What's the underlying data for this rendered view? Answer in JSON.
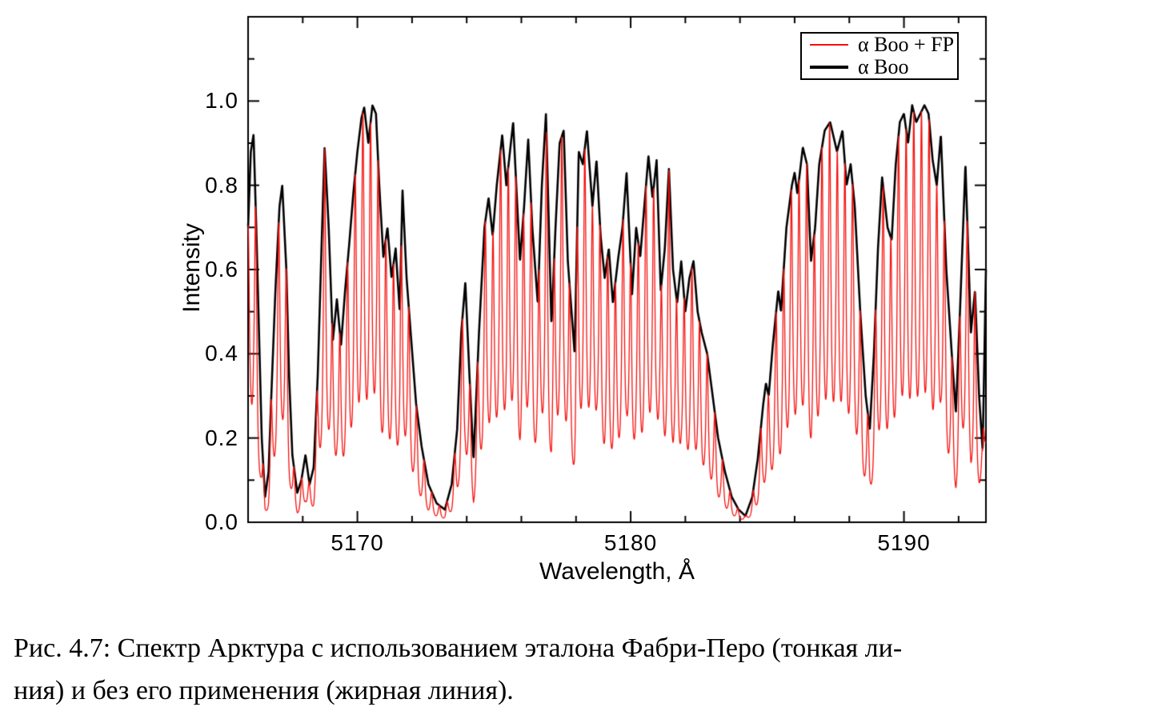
{
  "axes": {
    "x": {
      "label": "Wavelength, Å",
      "min": 5166.0,
      "max": 5193.0,
      "major_ticks": [
        5170,
        5180,
        5190
      ],
      "major_tick_labels": [
        "5170",
        "5180",
        "5190"
      ],
      "minor_step": 2
    },
    "y": {
      "label": "Intensity",
      "min": 0.0,
      "max": 1.2,
      "major_ticks": [
        0.0,
        0.2,
        0.4,
        0.6,
        0.8,
        1.0
      ],
      "major_tick_labels": [
        "0.0",
        "0.2",
        "0.4",
        "0.6",
        "0.8",
        "1.0"
      ],
      "minor_step": 0.1
    }
  },
  "legend": {
    "position": "top-right",
    "entries": [
      {
        "label": "α Boo + FP",
        "color": "#f5100c",
        "line_width": 2
      },
      {
        "label": "α Boo",
        "color": "#000000",
        "line_width": 4
      }
    ]
  },
  "chart_data": {
    "type": "line",
    "title": "",
    "xlabel": "Wavelength, Å",
    "ylabel": "Intensity",
    "xlim": [
      5166.0,
      5193.0
    ],
    "ylim": [
      0,
      1.2
    ],
    "grid": false,
    "legend_position": "top-right",
    "series": [
      {
        "name": "α Boo",
        "color": "#000000",
        "style": "thick",
        "points": {
          "x": [
            5166.0,
            5166.1,
            5166.2,
            5166.3,
            5166.4,
            5166.5,
            5166.62,
            5166.75,
            5166.85,
            5167.0,
            5167.15,
            5167.25,
            5167.4,
            5167.5,
            5167.62,
            5167.8,
            5167.95,
            5168.1,
            5168.25,
            5168.4,
            5168.55,
            5168.7,
            5168.8,
            5168.95,
            5169.1,
            5169.25,
            5169.4,
            5169.55,
            5169.7,
            5169.85,
            5170.0,
            5170.15,
            5170.25,
            5170.4,
            5170.55,
            5170.68,
            5170.8,
            5170.95,
            5171.1,
            5171.25,
            5171.4,
            5171.55,
            5171.65,
            5171.8,
            5171.95,
            5172.15,
            5172.35,
            5172.6,
            5172.9,
            5173.2,
            5173.45,
            5173.65,
            5173.8,
            5173.95,
            5174.1,
            5174.25,
            5174.45,
            5174.65,
            5174.8,
            5174.95,
            5175.1,
            5175.3,
            5175.45,
            5175.7,
            5175.95,
            5176.1,
            5176.25,
            5176.4,
            5176.6,
            5176.75,
            5176.9,
            5177.1,
            5177.25,
            5177.4,
            5177.55,
            5177.7,
            5177.95,
            5178.1,
            5178.25,
            5178.4,
            5178.6,
            5178.75,
            5178.9,
            5179.05,
            5179.2,
            5179.35,
            5179.55,
            5179.7,
            5179.85,
            5180.05,
            5180.2,
            5180.35,
            5180.5,
            5180.65,
            5180.8,
            5180.95,
            5181.1,
            5181.25,
            5181.4,
            5181.55,
            5181.7,
            5181.85,
            5182.0,
            5182.15,
            5182.3,
            5182.45,
            5182.6,
            5182.8,
            5183.0,
            5183.2,
            5183.45,
            5183.7,
            5183.95,
            5184.2,
            5184.45,
            5184.65,
            5184.85,
            5184.95,
            5185.05,
            5185.2,
            5185.4,
            5185.5,
            5185.7,
            5185.9,
            5186.0,
            5186.1,
            5186.3,
            5186.45,
            5186.6,
            5186.75,
            5186.9,
            5187.1,
            5187.3,
            5187.55,
            5187.75,
            5187.9,
            5188.05,
            5188.2,
            5188.4,
            5188.6,
            5188.75,
            5188.9,
            5189.05,
            5189.2,
            5189.4,
            5189.55,
            5189.7,
            5189.85,
            5190.0,
            5190.15,
            5190.3,
            5190.45,
            5190.6,
            5190.75,
            5190.9,
            5191.05,
            5191.2,
            5191.35,
            5191.55,
            5191.75,
            5191.9,
            5192.05,
            5192.25,
            5192.45,
            5192.6,
            5192.75,
            5192.88,
            5193.0
          ],
          "y": [
            0.7,
            0.88,
            0.92,
            0.7,
            0.45,
            0.2,
            0.06,
            0.12,
            0.3,
            0.55,
            0.75,
            0.8,
            0.6,
            0.35,
            0.16,
            0.07,
            0.1,
            0.16,
            0.09,
            0.13,
            0.35,
            0.68,
            0.89,
            0.7,
            0.43,
            0.53,
            0.42,
            0.55,
            0.66,
            0.78,
            0.88,
            0.96,
            0.985,
            0.9,
            0.99,
            0.97,
            0.8,
            0.63,
            0.7,
            0.58,
            0.65,
            0.5,
            0.79,
            0.58,
            0.45,
            0.28,
            0.18,
            0.09,
            0.045,
            0.03,
            0.09,
            0.22,
            0.45,
            0.57,
            0.35,
            0.15,
            0.45,
            0.7,
            0.77,
            0.68,
            0.8,
            0.92,
            0.8,
            0.95,
            0.62,
            0.75,
            0.91,
            0.7,
            0.52,
            0.8,
            0.97,
            0.47,
            0.7,
            0.9,
            0.93,
            0.62,
            0.4,
            0.88,
            0.85,
            0.93,
            0.75,
            0.86,
            0.68,
            0.58,
            0.65,
            0.52,
            0.63,
            0.7,
            0.83,
            0.54,
            0.7,
            0.63,
            0.75,
            0.87,
            0.77,
            0.86,
            0.55,
            0.65,
            0.84,
            0.6,
            0.52,
            0.62,
            0.5,
            0.58,
            0.62,
            0.5,
            0.45,
            0.4,
            0.3,
            0.2,
            0.12,
            0.06,
            0.03,
            0.015,
            0.06,
            0.15,
            0.28,
            0.33,
            0.3,
            0.42,
            0.55,
            0.5,
            0.7,
            0.8,
            0.83,
            0.78,
            0.89,
            0.85,
            0.62,
            0.7,
            0.85,
            0.93,
            0.95,
            0.88,
            0.93,
            0.8,
            0.85,
            0.75,
            0.5,
            0.3,
            0.22,
            0.4,
            0.65,
            0.82,
            0.7,
            0.67,
            0.85,
            0.95,
            0.97,
            0.9,
            0.99,
            0.95,
            0.97,
            0.99,
            0.97,
            0.86,
            0.8,
            0.92,
            0.6,
            0.4,
            0.26,
            0.5,
            0.85,
            0.45,
            0.55,
            0.3,
            0.17,
            0.6
          ]
        }
      },
      {
        "name": "α Boo + FP",
        "color": "#f5100c",
        "style": "thin",
        "derivation": "alpha_boo_intensity multiplied by Fabry-Perot etalon transmission comb",
        "fabry_perot": {
          "model": "airy",
          "period_angstrom": 0.28,
          "finesse_coefficient": 2.2,
          "min_transmission": 0.31
        }
      }
    ]
  },
  "caption": {
    "line1": "Рис. 4.7: Спектр Арктура с использованием эталона Фабри-Перо (тонкая ли-",
    "line2": "ния) и без его применения (жирная линия)."
  }
}
